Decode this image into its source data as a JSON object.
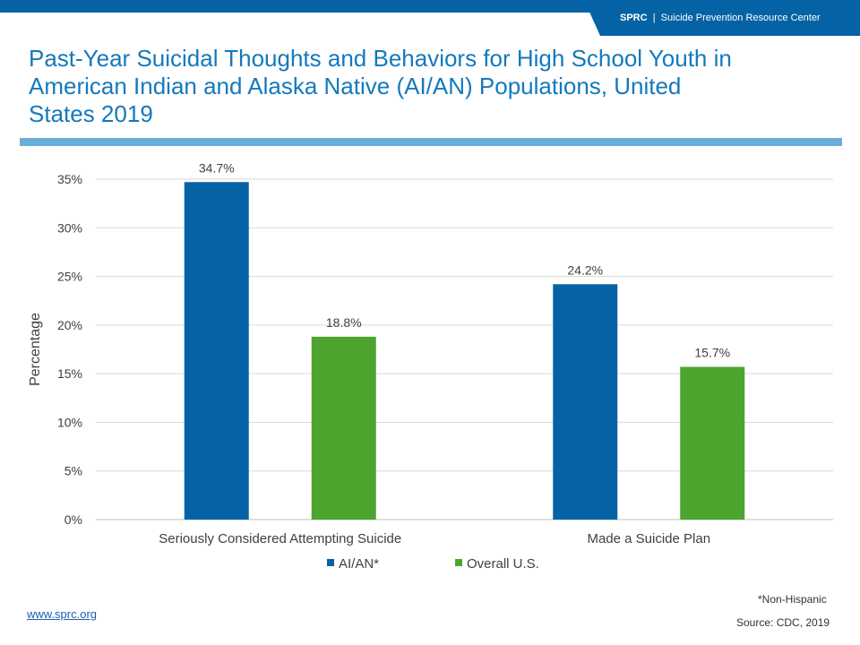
{
  "header": {
    "org_short": "SPRC",
    "separator": "|",
    "org_name": "Suicide Prevention Resource Center"
  },
  "title": "Past-Year Suicidal Thoughts and Behaviors for High School Youth in American Indian and Alaska Native (AI/AN) Populations, United States 2019",
  "footer": {
    "link": "www.sprc.org",
    "note": "*Non-Hispanic",
    "source": "Source: CDC, 2019"
  },
  "colors": {
    "ai_an": "#0563a5",
    "overall": "#4da42f",
    "accent": "#6aaed8"
  },
  "chart_data": {
    "type": "bar",
    "categories": [
      "Seriously Considered Attempting Suicide",
      "Made a Suicide Plan"
    ],
    "series": [
      {
        "name": "AI/AN*",
        "values": [
          34.7,
          24.2
        ],
        "labels": [
          "34.7%",
          "24.2%"
        ]
      },
      {
        "name": "Overall U.S.",
        "values": [
          18.8,
          15.7
        ],
        "labels": [
          "18.8%",
          "15.7%"
        ]
      }
    ],
    "ylabel": "Percentage",
    "ylim": [
      0,
      35
    ],
    "yticks": [
      "0%",
      "5%",
      "10%",
      "15%",
      "20%",
      "25%",
      "30%",
      "35%"
    ],
    "grid": true,
    "legend": "bottom"
  }
}
